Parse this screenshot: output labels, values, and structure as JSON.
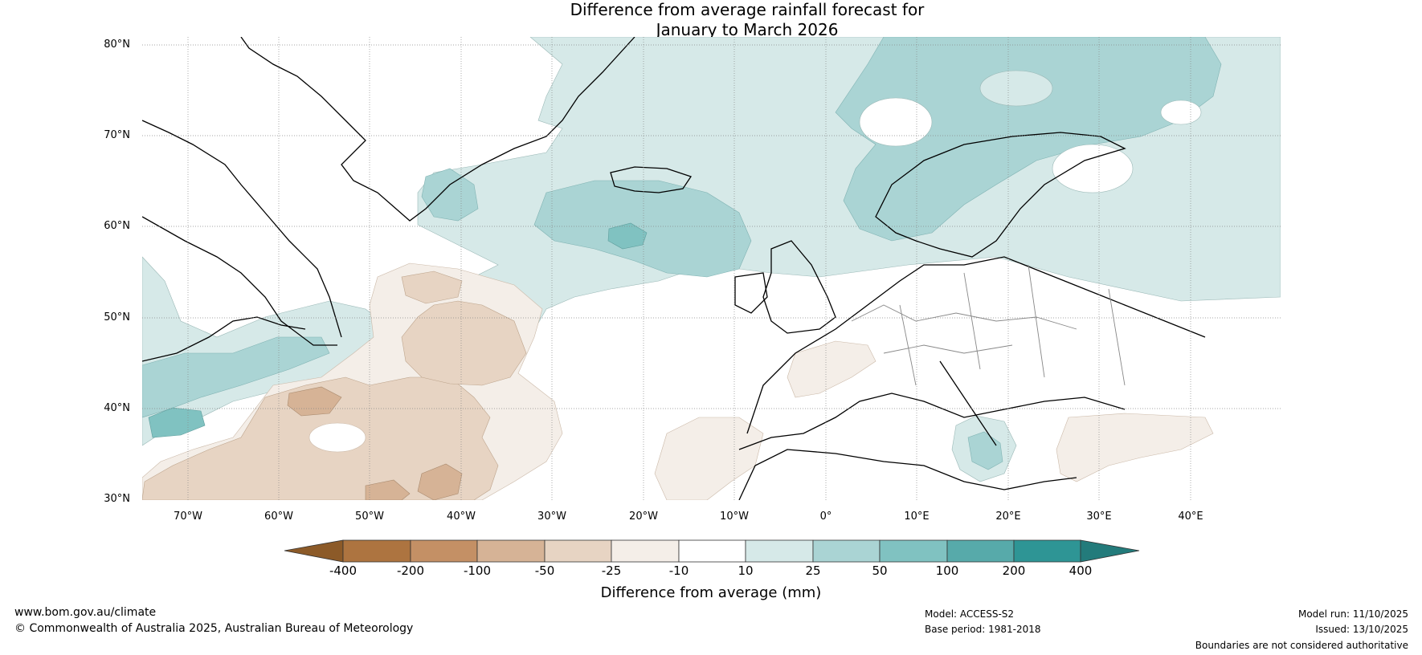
{
  "title": {
    "line1": "Difference from average rainfall forecast for",
    "line2": "January to March 2026"
  },
  "axes": {
    "latitudes": [
      "80°N",
      "70°N",
      "60°N",
      "50°N",
      "40°N",
      "30°N"
    ],
    "longitudes": [
      "70°W",
      "60°W",
      "50°W",
      "40°W",
      "30°W",
      "20°W",
      "10°W",
      "0°",
      "10°E",
      "20°E",
      "30°E",
      "40°E"
    ]
  },
  "colorbar": {
    "label": "Difference from average (mm)",
    "ticks": [
      "-400",
      "-200",
      "-100",
      "-50",
      "-25",
      "-10",
      "10",
      "25",
      "50",
      "100",
      "200",
      "400"
    ],
    "colors": {
      "lt_-400": "#8c5a28",
      "-400_-200": "#ad7440",
      "-200_-100": "#c49065",
      "-100_-50": "#d6b396",
      "-50_-25": "#e7d4c3",
      "-25_-10": "#f4eee8",
      "-10_10": "#ffffff",
      "10_25": "#d6e9e8",
      "25_50": "#aad4d4",
      "50_100": "#80c2c1",
      "100_200": "#57aaaa",
      "200_400": "#2e9595",
      "gt_400": "#237b7b"
    }
  },
  "footer": {
    "website": "www.bom.gov.au/climate",
    "copyright": "© Commonwealth of Australia 2025, Australian Bureau of Meteorology",
    "model": "Model: ACCESS-S2",
    "base_period": "Base period: 1981-2018",
    "model_run": "Model run: 11/10/2025",
    "issued": "Issued: 13/10/2025",
    "disclaimer": "Boundaries are not considered authoritative"
  }
}
